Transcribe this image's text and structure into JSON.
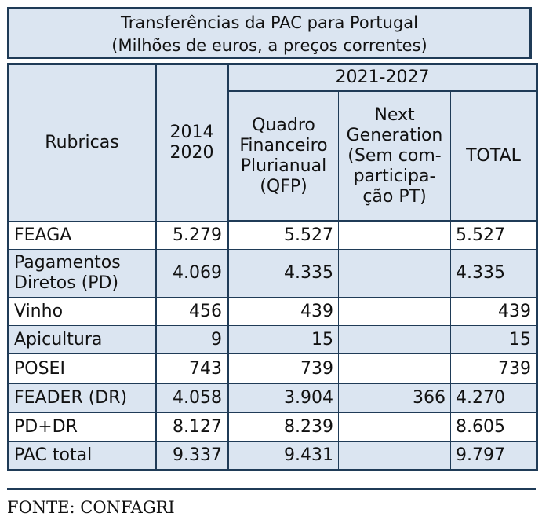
{
  "title": {
    "line1": "Transferências da PAC para Portugal",
    "line2": "(Milhões de euros, a preços correntes)"
  },
  "header": {
    "rubricas": "Rubricas",
    "period1_line1": "2014",
    "period1_line2": "2020",
    "period2": "2021-2027",
    "qfp_lines": [
      "Quadro",
      "Financeiro",
      "Plurianual",
      "(QFP)"
    ],
    "ng_lines": [
      "Next",
      "Generation",
      "(Sem com-",
      "participa-",
      "ção PT)"
    ],
    "total": "TOTAL"
  },
  "rows": [
    {
      "label": "FEAGA",
      "v2014": "5.279",
      "qfp": "5.527",
      "ng": "",
      "total": "5.527"
    },
    {
      "label": "Pagamentos Diretos (PD)",
      "v2014": "4.069",
      "qfp": "4.335",
      "ng": "",
      "total": "4.335"
    },
    {
      "label": "Vinho",
      "v2014": "456",
      "qfp": "439",
      "ng": "",
      "total": "439"
    },
    {
      "label": "Apicultura",
      "v2014": "9",
      "qfp": "15",
      "ng": "",
      "total": "15"
    },
    {
      "label": "POSEI",
      "v2014": "743",
      "qfp": "739",
      "ng": "",
      "total": "739"
    },
    {
      "label": "FEADER (DR)",
      "v2014": "4.058",
      "qfp": "3.904",
      "ng": "366",
      "total": "4.270"
    },
    {
      "label": "PD+DR",
      "v2014": "8.127",
      "qfp": "8.239",
      "ng": "",
      "total": "8.605"
    },
    {
      "label": "PAC total",
      "v2014": "9.337",
      "qfp": "9.431",
      "ng": "",
      "total": "9.797"
    }
  ],
  "source": "FONTE: CONFAGRI"
}
